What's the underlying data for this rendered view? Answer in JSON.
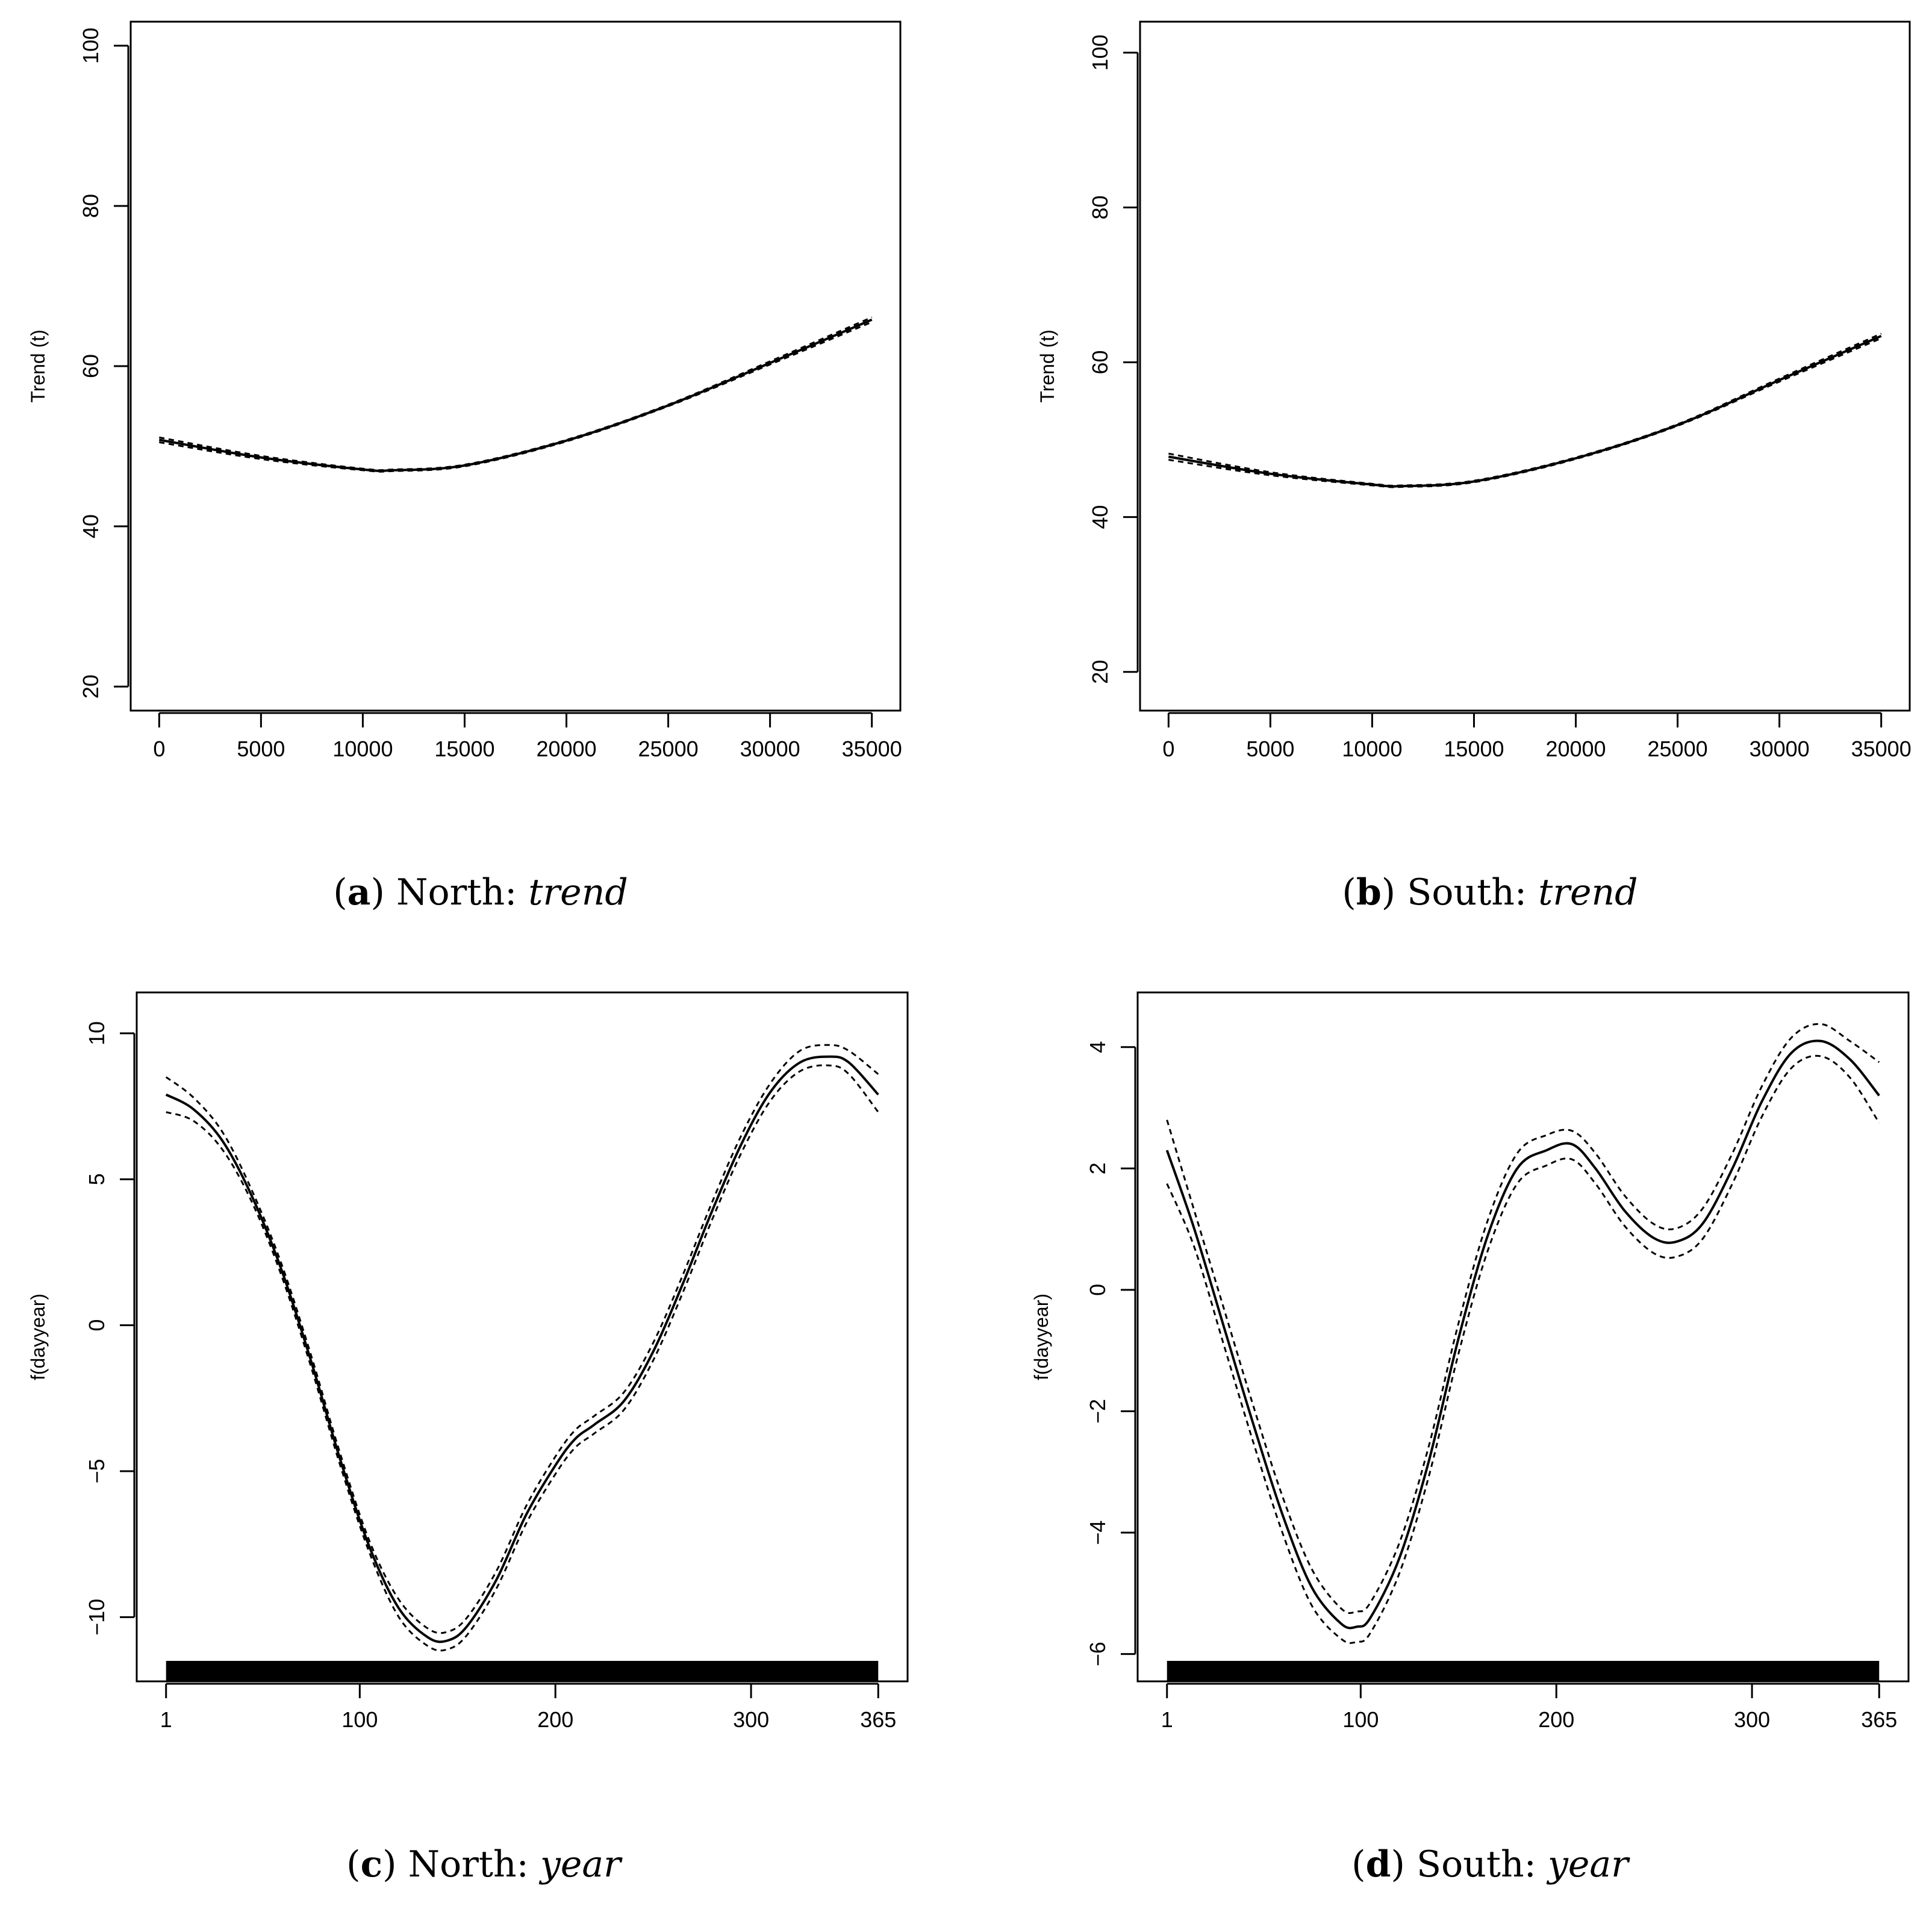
{
  "chart_data": [
    {
      "id": "a",
      "type": "line",
      "caption": {
        "letter": "a",
        "text": " North: ",
        "em": "trend"
      },
      "xlabel": "",
      "ylabel": "Trend (t)",
      "xlim": [
        -1400,
        36400
      ],
      "ylim": [
        17,
        103
      ],
      "xticks": [
        0,
        5000,
        10000,
        15000,
        20000,
        25000,
        30000,
        35000
      ],
      "xtick_labels": [
        "0",
        "5000",
        "10000",
        "15000",
        "20000",
        "25000",
        "30000",
        "35000"
      ],
      "yticks": [
        20,
        40,
        60,
        80,
        100
      ],
      "ytick_labels": [
        "20",
        "40",
        "60",
        "80",
        "100"
      ],
      "rug": false,
      "series": [
        {
          "name": "fit",
          "style": "solid",
          "x": [
            0,
            5000,
            10000,
            11500,
            15000,
            20000,
            25000,
            30000,
            35000
          ],
          "y": [
            50.8,
            48.6,
            47.1,
            47.0,
            47.6,
            50.7,
            55.1,
            60.4,
            65.8
          ]
        },
        {
          "name": "upper",
          "style": "dashed",
          "x": [
            0,
            5000,
            10000,
            11500,
            15000,
            20000,
            25000,
            30000,
            35000
          ],
          "y": [
            51.1,
            48.8,
            47.2,
            47.1,
            47.7,
            50.8,
            55.2,
            60.6,
            66.1
          ]
        },
        {
          "name": "lower",
          "style": "dashed",
          "x": [
            0,
            5000,
            10000,
            11500,
            15000,
            20000,
            25000,
            30000,
            35000
          ],
          "y": [
            50.5,
            48.4,
            47.0,
            46.9,
            47.5,
            50.6,
            55.0,
            60.2,
            65.5
          ]
        }
      ]
    },
    {
      "id": "b",
      "type": "line",
      "caption": {
        "letter": "b",
        "text": " South: ",
        "em": "trend"
      },
      "xlabel": "",
      "ylabel": "Trend (t)",
      "xlim": [
        -1400,
        36400
      ],
      "ylim": [
        15,
        104
      ],
      "xticks": [
        0,
        5000,
        10000,
        15000,
        20000,
        25000,
        30000,
        35000
      ],
      "xtick_labels": [
        "0",
        "5000",
        "10000",
        "15000",
        "20000",
        "25000",
        "30000",
        "35000"
      ],
      "yticks": [
        20,
        40,
        60,
        80,
        100
      ],
      "ytick_labels": [
        "20",
        "40",
        "60",
        "80",
        "100"
      ],
      "rug": false,
      "series": [
        {
          "name": "fit",
          "style": "solid",
          "x": [
            0,
            5000,
            10000,
            11500,
            15000,
            20000,
            25000,
            30000,
            35000
          ],
          "y": [
            47.8,
            45.6,
            44.2,
            44.0,
            44.6,
            47.6,
            51.9,
            57.7,
            63.4
          ]
        },
        {
          "name": "upper",
          "style": "dashed",
          "x": [
            0,
            5000,
            10000,
            11500,
            15000,
            20000,
            25000,
            30000,
            35000
          ],
          "y": [
            48.2,
            45.8,
            44.3,
            44.1,
            44.7,
            47.7,
            52.0,
            57.9,
            63.7
          ]
        },
        {
          "name": "lower",
          "style": "dashed",
          "x": [
            0,
            5000,
            10000,
            11500,
            15000,
            20000,
            25000,
            30000,
            35000
          ],
          "y": [
            47.4,
            45.4,
            44.1,
            43.9,
            44.5,
            47.5,
            51.8,
            57.5,
            63.1
          ]
        }
      ]
    },
    {
      "id": "c",
      "type": "line",
      "caption": {
        "letter": "c",
        "text": " North: ",
        "em": "year"
      },
      "xlabel": "",
      "ylabel": "f(dayyear)",
      "xlim": [
        -14,
        380
      ],
      "ylim": [
        -12.2,
        11.4
      ],
      "xticks": [
        1,
        100,
        200,
        300,
        365
      ],
      "xtick_labels": [
        "1",
        "100",
        "200",
        "300",
        "365"
      ],
      "yticks": [
        -10,
        -5,
        0,
        5,
        10
      ],
      "ytick_labels": [
        "−10",
        "−5",
        "0",
        "5",
        "10"
      ],
      "rug": true,
      "series": [
        {
          "name": "fit",
          "style": "solid",
          "x": [
            1,
            15,
            30,
            45,
            60,
            75,
            90,
            105,
            120,
            135,
            145,
            155,
            170,
            185,
            200,
            210,
            220,
            235,
            250,
            265,
            280,
            295,
            310,
            325,
            340,
            350,
            365
          ],
          "y": [
            7.9,
            7.4,
            6.3,
            4.4,
            1.9,
            -1.2,
            -4.6,
            -7.6,
            -9.7,
            -10.7,
            -10.8,
            -10.3,
            -8.7,
            -6.5,
            -4.8,
            -3.9,
            -3.4,
            -2.6,
            -0.9,
            1.4,
            3.9,
            6.2,
            8.0,
            9.0,
            9.2,
            9.0,
            7.9
          ]
        },
        {
          "name": "upper",
          "style": "dashed",
          "x": [
            1,
            15,
            30,
            45,
            60,
            75,
            90,
            105,
            120,
            135,
            145,
            155,
            170,
            185,
            200,
            210,
            220,
            235,
            250,
            265,
            280,
            295,
            310,
            325,
            340,
            350,
            365
          ],
          "y": [
            8.5,
            7.8,
            6.6,
            4.6,
            2.1,
            -1.0,
            -4.4,
            -7.4,
            -9.4,
            -10.4,
            -10.5,
            -10.0,
            -8.4,
            -6.2,
            -4.5,
            -3.6,
            -3.1,
            -2.3,
            -0.6,
            1.7,
            4.2,
            6.5,
            8.3,
            9.4,
            9.6,
            9.4,
            8.6
          ]
        },
        {
          "name": "lower",
          "style": "dashed",
          "x": [
            1,
            15,
            30,
            45,
            60,
            75,
            90,
            105,
            120,
            135,
            145,
            155,
            170,
            185,
            200,
            210,
            220,
            235,
            250,
            265,
            280,
            295,
            310,
            325,
            340,
            350,
            365
          ],
          "y": [
            7.3,
            7.0,
            6.0,
            4.2,
            1.7,
            -1.4,
            -4.8,
            -7.8,
            -10.0,
            -11.0,
            -11.1,
            -10.6,
            -9.0,
            -6.8,
            -5.1,
            -4.2,
            -3.7,
            -2.9,
            -1.2,
            1.1,
            3.6,
            5.9,
            7.7,
            8.7,
            8.9,
            8.6,
            7.3
          ]
        }
      ]
    },
    {
      "id": "d",
      "type": "line",
      "caption": {
        "letter": "d",
        "text": " South: ",
        "em": "year"
      },
      "xlabel": "",
      "ylabel": "f(dayyear)",
      "xlim": [
        -14,
        380
      ],
      "ylim": [
        -6.45,
        4.9
      ],
      "xticks": [
        1,
        100,
        200,
        300,
        365
      ],
      "xtick_labels": [
        "1",
        "100",
        "200",
        "300",
        "365"
      ],
      "yticks": [
        -6,
        -4,
        -2,
        0,
        2,
        4
      ],
      "ytick_labels": [
        "−6",
        "−4",
        "−2",
        "0",
        "2",
        "4"
      ],
      "rug": true,
      "series": [
        {
          "name": "fit",
          "style": "solid",
          "x": [
            1,
            15,
            30,
            45,
            60,
            75,
            90,
            98,
            105,
            120,
            135,
            150,
            165,
            180,
            195,
            208,
            220,
            235,
            250,
            262,
            275,
            290,
            305,
            320,
            335,
            350,
            365
          ],
          "y": [
            2.3,
            1.0,
            -0.6,
            -2.2,
            -3.7,
            -4.9,
            -5.5,
            -5.55,
            -5.4,
            -4.4,
            -2.8,
            -0.8,
            0.9,
            2.0,
            2.3,
            2.4,
            2.0,
            1.3,
            0.85,
            0.8,
            1.1,
            2.0,
            3.1,
            3.9,
            4.1,
            3.8,
            3.2
          ]
        },
        {
          "name": "upper",
          "style": "dashed",
          "x": [
            1,
            15,
            30,
            45,
            60,
            75,
            90,
            98,
            105,
            120,
            135,
            150,
            165,
            180,
            195,
            208,
            220,
            235,
            250,
            262,
            275,
            290,
            305,
            320,
            335,
            350,
            365
          ],
          "y": [
            2.8,
            1.3,
            -0.3,
            -1.9,
            -3.4,
            -4.6,
            -5.25,
            -5.3,
            -5.15,
            -4.15,
            -2.55,
            -0.55,
            1.15,
            2.25,
            2.55,
            2.62,
            2.25,
            1.55,
            1.08,
            1.02,
            1.35,
            2.25,
            3.35,
            4.15,
            4.38,
            4.1,
            3.75
          ]
        },
        {
          "name": "lower",
          "style": "dashed",
          "x": [
            1,
            15,
            30,
            45,
            60,
            75,
            90,
            98,
            105,
            120,
            135,
            150,
            165,
            180,
            195,
            208,
            220,
            235,
            250,
            262,
            275,
            290,
            305,
            320,
            335,
            350,
            365
          ],
          "y": [
            1.75,
            0.7,
            -0.9,
            -2.5,
            -4.0,
            -5.2,
            -5.75,
            -5.8,
            -5.65,
            -4.65,
            -3.05,
            -1.05,
            0.65,
            1.75,
            2.05,
            2.15,
            1.75,
            1.05,
            0.6,
            0.55,
            0.85,
            1.75,
            2.85,
            3.65,
            3.85,
            3.5,
            2.75
          ]
        }
      ]
    }
  ]
}
